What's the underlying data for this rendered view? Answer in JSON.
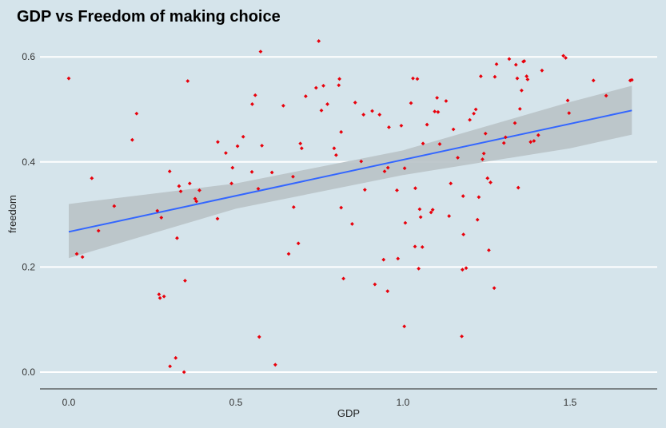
{
  "chart_data": {
    "type": "scatter",
    "title": "GDP vs Freedom of making choice",
    "xlabel": "GDP",
    "ylabel": "freedom",
    "xlim": [
      -0.09,
      1.75
    ],
    "ylim": [
      -0.03,
      0.63
    ],
    "xticks": [
      "0.0",
      "0.5",
      "1.0",
      "1.5"
    ],
    "yticks": [
      "0.0",
      "0.2",
      "0.4",
      "0.6"
    ],
    "grid": "horizontal",
    "colors": {
      "background": "#d5e4eb",
      "points": "#e8000b",
      "fit_line": "#3366ff",
      "band": "#b9c2c7",
      "grid": "#ffffff"
    },
    "points": [
      [
        0.0,
        0.559
      ],
      [
        0.024,
        0.225
      ],
      [
        0.041,
        0.219
      ],
      [
        0.069,
        0.369
      ],
      [
        0.089,
        0.269
      ],
      [
        0.136,
        0.316
      ],
      [
        0.19,
        0.442
      ],
      [
        0.203,
        0.492
      ],
      [
        0.265,
        0.307
      ],
      [
        0.27,
        0.148
      ],
      [
        0.273,
        0.141
      ],
      [
        0.277,
        0.294
      ],
      [
        0.285,
        0.144
      ],
      [
        0.302,
        0.382
      ],
      [
        0.303,
        0.011
      ],
      [
        0.32,
        0.027
      ],
      [
        0.324,
        0.255
      ],
      [
        0.33,
        0.354
      ],
      [
        0.335,
        0.344
      ],
      [
        0.345,
        0.0
      ],
      [
        0.348,
        0.174
      ],
      [
        0.356,
        0.554
      ],
      [
        0.362,
        0.359
      ],
      [
        0.378,
        0.33
      ],
      [
        0.382,
        0.325
      ],
      [
        0.391,
        0.346
      ],
      [
        0.445,
        0.292
      ],
      [
        0.446,
        0.438
      ],
      [
        0.47,
        0.417
      ],
      [
        0.487,
        0.359
      ],
      [
        0.49,
        0.389
      ],
      [
        0.505,
        0.43
      ],
      [
        0.522,
        0.448
      ],
      [
        0.548,
        0.381
      ],
      [
        0.549,
        0.51
      ],
      [
        0.558,
        0.527
      ],
      [
        0.567,
        0.349
      ],
      [
        0.57,
        0.067
      ],
      [
        0.574,
        0.61
      ],
      [
        0.578,
        0.431
      ],
      [
        0.608,
        0.38
      ],
      [
        0.618,
        0.014
      ],
      [
        0.642,
        0.507
      ],
      [
        0.658,
        0.225
      ],
      [
        0.671,
        0.372
      ],
      [
        0.673,
        0.314
      ],
      [
        0.687,
        0.245
      ],
      [
        0.693,
        0.435
      ],
      [
        0.697,
        0.426
      ],
      [
        0.709,
        0.525
      ],
      [
        0.74,
        0.541
      ],
      [
        0.748,
        0.63
      ],
      [
        0.756,
        0.498
      ],
      [
        0.762,
        0.545
      ],
      [
        0.774,
        0.51
      ],
      [
        0.794,
        0.426
      ],
      [
        0.8,
        0.413
      ],
      [
        0.808,
        0.546
      ],
      [
        0.81,
        0.558
      ],
      [
        0.815,
        0.457
      ],
      [
        0.815,
        0.313
      ],
      [
        0.822,
        0.178
      ],
      [
        0.848,
        0.282
      ],
      [
        0.857,
        0.513
      ],
      [
        0.875,
        0.401
      ],
      [
        0.882,
        0.49
      ],
      [
        0.886,
        0.347
      ],
      [
        0.908,
        0.497
      ],
      [
        0.916,
        0.167
      ],
      [
        0.93,
        0.49
      ],
      [
        0.942,
        0.214
      ],
      [
        0.945,
        0.382
      ],
      [
        0.954,
        0.154
      ],
      [
        0.955,
        0.389
      ],
      [
        0.958,
        0.466
      ],
      [
        0.982,
        0.346
      ],
      [
        0.985,
        0.216
      ],
      [
        0.995,
        0.469
      ],
      [
        1.004,
        0.087
      ],
      [
        1.005,
        0.388
      ],
      [
        1.007,
        0.284
      ],
      [
        1.024,
        0.512
      ],
      [
        1.03,
        0.559
      ],
      [
        1.036,
        0.239
      ],
      [
        1.037,
        0.35
      ],
      [
        1.043,
        0.558
      ],
      [
        1.047,
        0.197
      ],
      [
        1.05,
        0.31
      ],
      [
        1.053,
        0.295
      ],
      [
        1.058,
        0.238
      ],
      [
        1.06,
        0.435
      ],
      [
        1.072,
        0.471
      ],
      [
        1.084,
        0.304
      ],
      [
        1.089,
        0.309
      ],
      [
        1.095,
        0.496
      ],
      [
        1.102,
        0.522
      ],
      [
        1.105,
        0.495
      ],
      [
        1.11,
        0.434
      ],
      [
        1.129,
        0.516
      ],
      [
        1.138,
        0.297
      ],
      [
        1.143,
        0.359
      ],
      [
        1.151,
        0.462
      ],
      [
        1.164,
        0.408
      ],
      [
        1.176,
        0.068
      ],
      [
        1.178,
        0.195
      ],
      [
        1.18,
        0.335
      ],
      [
        1.181,
        0.262
      ],
      [
        1.189,
        0.198
      ],
      [
        1.2,
        0.48
      ],
      [
        1.212,
        0.492
      ],
      [
        1.218,
        0.5
      ],
      [
        1.223,
        0.29
      ],
      [
        1.227,
        0.333
      ],
      [
        1.233,
        0.563
      ],
      [
        1.238,
        0.405
      ],
      [
        1.242,
        0.416
      ],
      [
        1.247,
        0.454
      ],
      [
        1.253,
        0.369
      ],
      [
        1.257,
        0.232
      ],
      [
        1.262,
        0.361
      ],
      [
        1.273,
        0.16
      ],
      [
        1.275,
        0.562
      ],
      [
        1.28,
        0.586
      ],
      [
        1.302,
        0.436
      ],
      [
        1.307,
        0.447
      ],
      [
        1.318,
        0.596
      ],
      [
        1.335,
        0.474
      ],
      [
        1.338,
        0.585
      ],
      [
        1.342,
        0.559
      ],
      [
        1.345,
        0.351
      ],
      [
        1.35,
        0.501
      ],
      [
        1.355,
        0.536
      ],
      [
        1.36,
        0.591
      ],
      [
        1.363,
        0.592
      ],
      [
        1.37,
        0.563
      ],
      [
        1.373,
        0.557
      ],
      [
        1.382,
        0.438
      ],
      [
        1.392,
        0.44
      ],
      [
        1.405,
        0.451
      ],
      [
        1.416,
        0.574
      ],
      [
        1.48,
        0.602
      ],
      [
        1.487,
        0.598
      ],
      [
        1.493,
        0.517
      ],
      [
        1.497,
        0.493
      ],
      [
        1.57,
        0.555
      ],
      [
        1.608,
        0.526
      ],
      [
        1.68,
        0.555
      ],
      [
        1.685,
        0.556
      ]
    ],
    "fit_line": [
      [
        0.0,
        0.267
      ],
      [
        1.685,
        0.498
      ]
    ],
    "confidence_band": {
      "x": [
        0.0,
        0.5,
        1.0,
        1.5,
        1.685
      ],
      "lower": [
        0.217,
        0.311,
        0.375,
        0.426,
        0.452
      ],
      "upper": [
        0.32,
        0.359,
        0.422,
        0.514,
        0.545
      ]
    }
  }
}
